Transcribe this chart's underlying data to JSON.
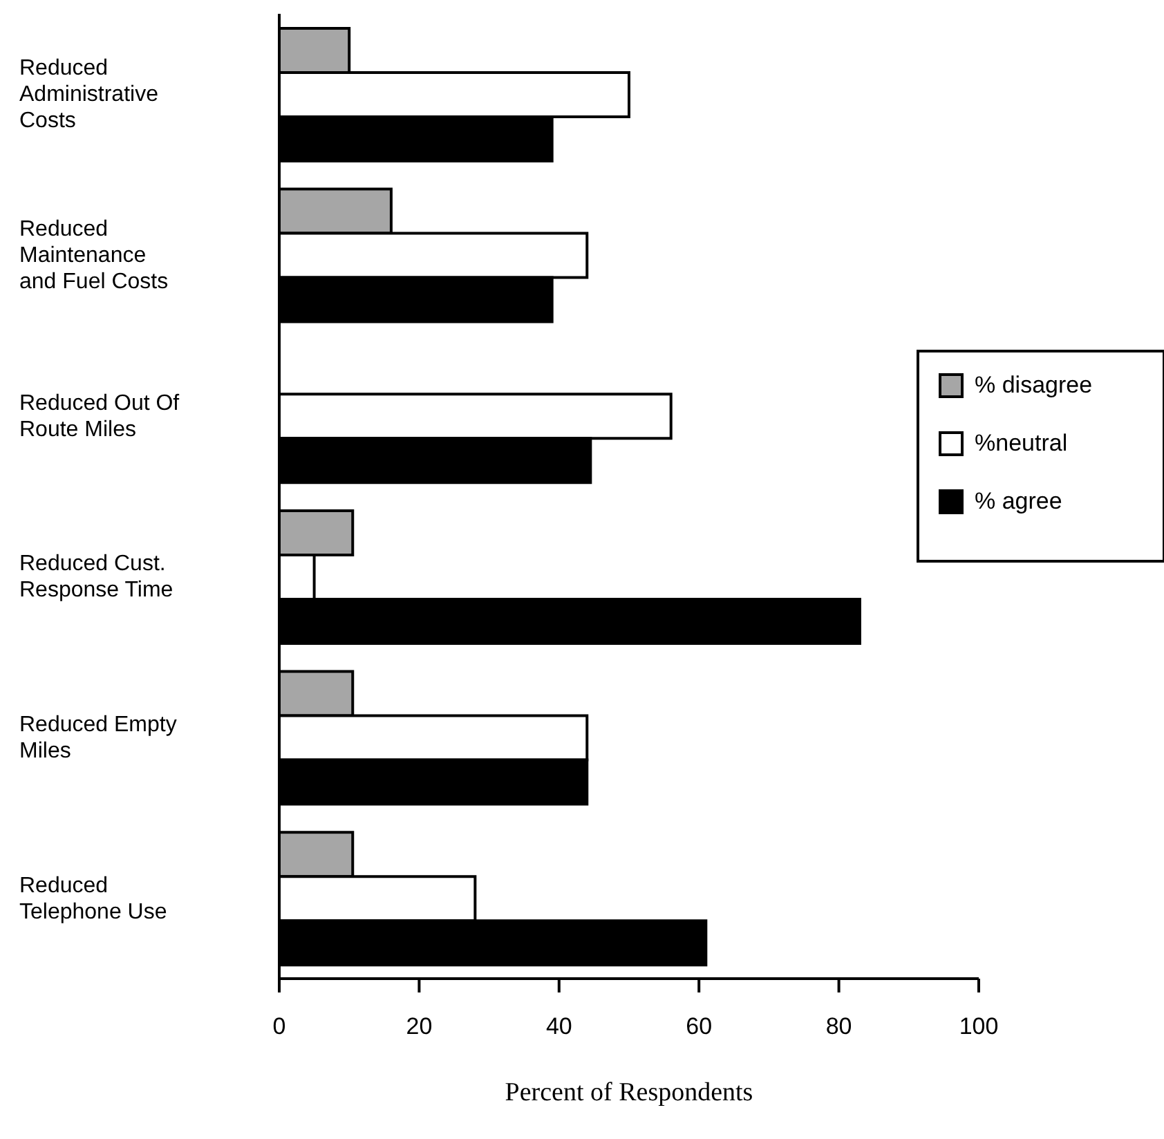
{
  "chart_data": {
    "type": "bar",
    "orientation": "horizontal",
    "xlabel": "Percent of Respondents",
    "categories": [
      "Reduced Administrative Costs",
      "Reduced Maintenance and Fuel Costs",
      "Reduced Out Of Route Miles",
      "Reduced Cust. Response Time",
      "Reduced Empty Miles",
      "Reduced Telephone Use"
    ],
    "series": [
      {
        "name": "% disagree",
        "color": "#a6a6a6",
        "values": [
          10,
          16,
          0,
          10.5,
          10.5,
          10.5
        ]
      },
      {
        "name": "%neutral",
        "color": "#ffffff",
        "values": [
          50,
          44,
          56,
          5,
          44,
          28
        ]
      },
      {
        "name": "% agree",
        "color": "#000000",
        "values": [
          39,
          39,
          44.5,
          83,
          44,
          61
        ]
      }
    ],
    "xlim": [
      0,
      100
    ],
    "xticks": [
      0,
      20,
      40,
      60,
      80,
      100
    ],
    "grid": false,
    "legend": "right"
  }
}
